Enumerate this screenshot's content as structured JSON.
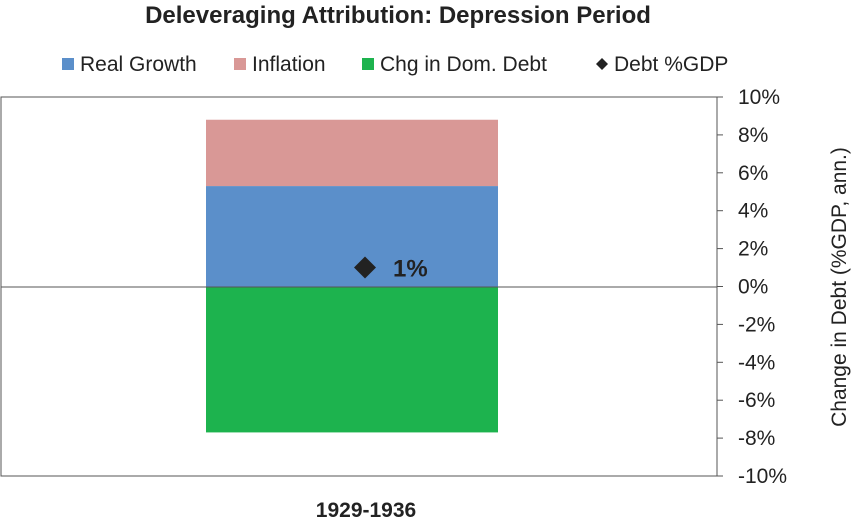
{
  "chart_data": {
    "type": "bar",
    "stacked": true,
    "title": "Deleveraging Attribution: Depression Period",
    "xlabel": "",
    "ylabel": "Change in Debt (%GDP, ann.)",
    "categories": [
      "1929-1936"
    ],
    "ylim": [
      -10,
      10
    ],
    "y_ticks": [
      10,
      8,
      6,
      4,
      2,
      0,
      -2,
      -4,
      -6,
      -8,
      -10
    ],
    "y_tick_labels": [
      "10%",
      "8%",
      "6%",
      "4%",
      "2%",
      "0%",
      "-2%",
      "-4%",
      "-6%",
      "-8%",
      "-10%"
    ],
    "y_axis_side": "right",
    "grid": false,
    "legend_position": "top",
    "series": [
      {
        "name": "Real Growth",
        "type": "bar",
        "values": [
          5.3
        ],
        "color": "#5B8FCA"
      },
      {
        "name": "Inflation",
        "type": "bar",
        "values": [
          3.5
        ],
        "color": "#D99896"
      },
      {
        "name": "Chg in Dom. Debt",
        "type": "bar",
        "values": [
          -7.7
        ],
        "color": "#1DB34E"
      },
      {
        "name": "Debt %GDP",
        "type": "marker",
        "marker": "diamond",
        "values": [
          1
        ],
        "color": "#222222"
      }
    ],
    "annotations": [
      {
        "text": "1%",
        "series": "Debt %GDP",
        "category": "1929-1936"
      }
    ]
  }
}
